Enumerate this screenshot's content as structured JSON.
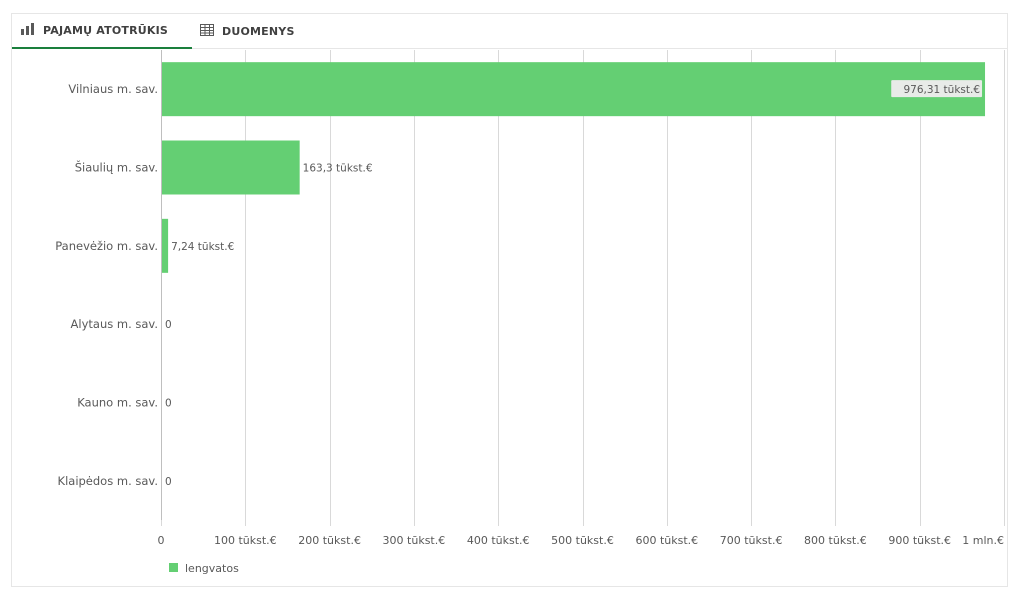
{
  "tabs": {
    "chart_label": "PAJAMŲ ATOTRŪKIS",
    "data_label": "DUOMENYS"
  },
  "colors": {
    "bar": "#64cf73",
    "active_tab_underline": "#1a7f3c"
  },
  "chart_data": {
    "type": "bar",
    "orientation": "horizontal",
    "categories": [
      "Vilniaus m. sav.",
      "Šiaulių m. sav.",
      "Panevėžio m. sav.",
      "Alytaus m. sav.",
      "Kauno m. sav.",
      "Klaipėdos m. sav."
    ],
    "series": [
      {
        "name": "lengvatos",
        "values": [
          976310,
          163300,
          7240,
          0,
          0,
          0
        ]
      }
    ],
    "value_labels": [
      "976,31 tūkst.€",
      "163,3 tūkst.€",
      "7,24 tūkst.€",
      "0",
      "0",
      "0"
    ],
    "xlim": [
      0,
      1000000
    ],
    "xticks": [
      0,
      100000,
      200000,
      300000,
      400000,
      500000,
      600000,
      700000,
      800000,
      900000,
      1000000
    ],
    "xtick_labels": [
      "0",
      "100 tūkst.€",
      "200 tūkst.€",
      "300 tūkst.€",
      "400 tūkst.€",
      "500 tūkst.€",
      "600 tūkst.€",
      "700 tūkst.€",
      "800 tūkst.€",
      "900 tūkst.€",
      "1 mln.€"
    ],
    "grid": true,
    "legend": {
      "position": "bottom-left",
      "entries": [
        "lengvatos"
      ]
    }
  }
}
